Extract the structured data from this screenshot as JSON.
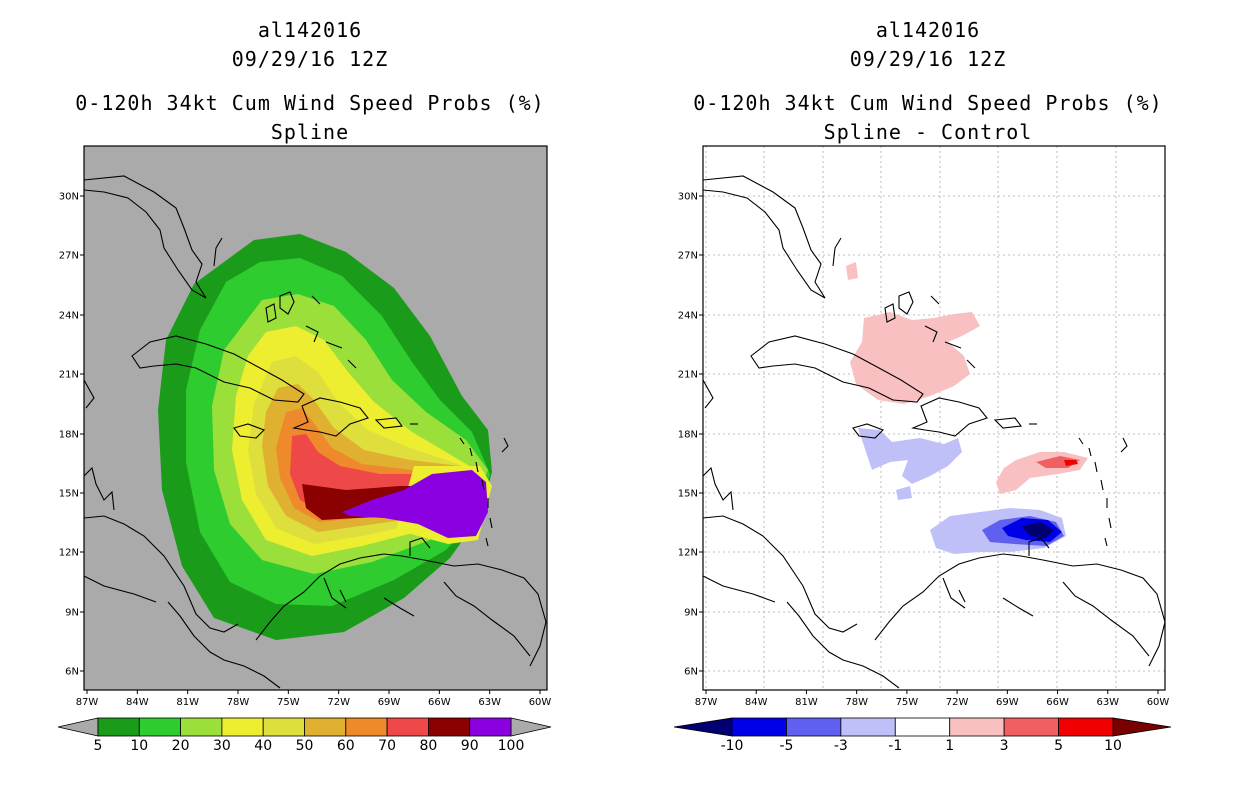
{
  "panels": [
    {
      "id": "left",
      "title_lines": [
        "al142016",
        "09/29/16 12Z",
        "0-120h 34kt Cum Wind Speed Probs (%)",
        "Spline"
      ],
      "background": "#aaaaaa",
      "lat_labels": [
        "30N",
        "27N",
        "24N",
        "21N",
        "18N",
        "15N",
        "12N",
        "9N",
        "6N"
      ],
      "lon_labels": [
        "87W",
        "84W",
        "81W",
        "78W",
        "75W",
        "72W",
        "69W",
        "66W",
        "63W",
        "60W"
      ],
      "colorbar": {
        "labels": [
          "5",
          "10",
          "20",
          "30",
          "40",
          "50",
          "60",
          "70",
          "80",
          "90",
          "100"
        ],
        "colors": [
          "#1a9b1a",
          "#2ecc2e",
          "#9be03a",
          "#eeee30",
          "#dede3c",
          "#e0b030",
          "#ef8a2c",
          "#ef4848",
          "#8b0000",
          "#8a00e0"
        ],
        "end_colors": [
          "#aaaaaa",
          "#aaaaaa"
        ]
      }
    },
    {
      "id": "right",
      "title_lines": [
        "al142016",
        "09/29/16 12Z",
        "0-120h 34kt Cum Wind Speed Probs (%)",
        "Spline - Control"
      ],
      "background": "#ffffff",
      "lat_labels": [
        "30N",
        "27N",
        "24N",
        "21N",
        "18N",
        "15N",
        "12N",
        "9N",
        "6N"
      ],
      "lon_labels": [
        "87W",
        "84W",
        "81W",
        "78W",
        "75W",
        "72W",
        "69W",
        "66W",
        "63W",
        "60W"
      ],
      "colorbar": {
        "labels": [
          "-10",
          "-5",
          "-3",
          "-1",
          "1",
          "3",
          "5",
          "10"
        ],
        "colors": [
          "#0000e8",
          "#6060f0",
          "#c0c0f8",
          "#ffffff",
          "#f8c0c0",
          "#f06060",
          "#f00000"
        ],
        "end_colors": [
          "#000070",
          "#780000"
        ]
      }
    }
  ]
}
